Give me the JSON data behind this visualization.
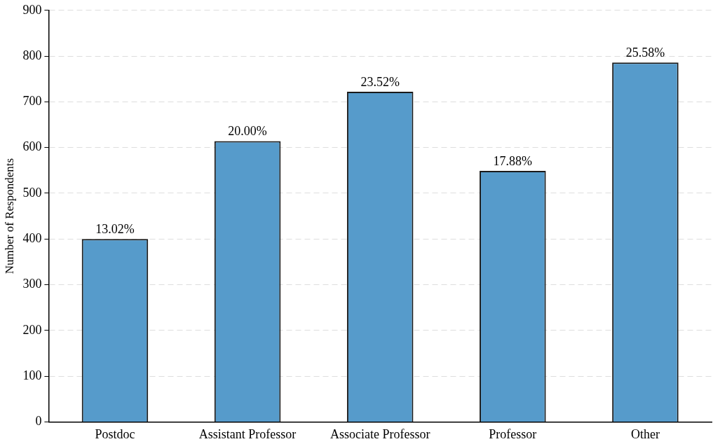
{
  "chart_data": {
    "type": "bar",
    "ylabel": "Number of Respondents",
    "categories": [
      "Postdoc",
      "Assistant Professor",
      "Associate Professor",
      "Professor",
      "Other"
    ],
    "values": [
      400,
      614,
      722,
      549,
      786
    ],
    "annotations": [
      {
        "text": "13.02%",
        "x": "Postdoc",
        "y": 400
      },
      {
        "text": "20.00%",
        "x": "Assistant Professor",
        "y": 614
      },
      {
        "text": "23.52%",
        "x": "Associate Professor",
        "y": 722
      },
      {
        "text": "17.88%",
        "x": "Professor",
        "y": 549
      },
      {
        "text": "25.58%",
        "x": "Other",
        "y": 786
      }
    ],
    "color": "#569bcb",
    "ylim": [
      0,
      900
    ],
    "yticks": [
      0,
      100,
      200,
      300,
      400,
      500,
      600,
      700,
      800,
      900
    ],
    "grid": "y",
    "legend": false
  }
}
